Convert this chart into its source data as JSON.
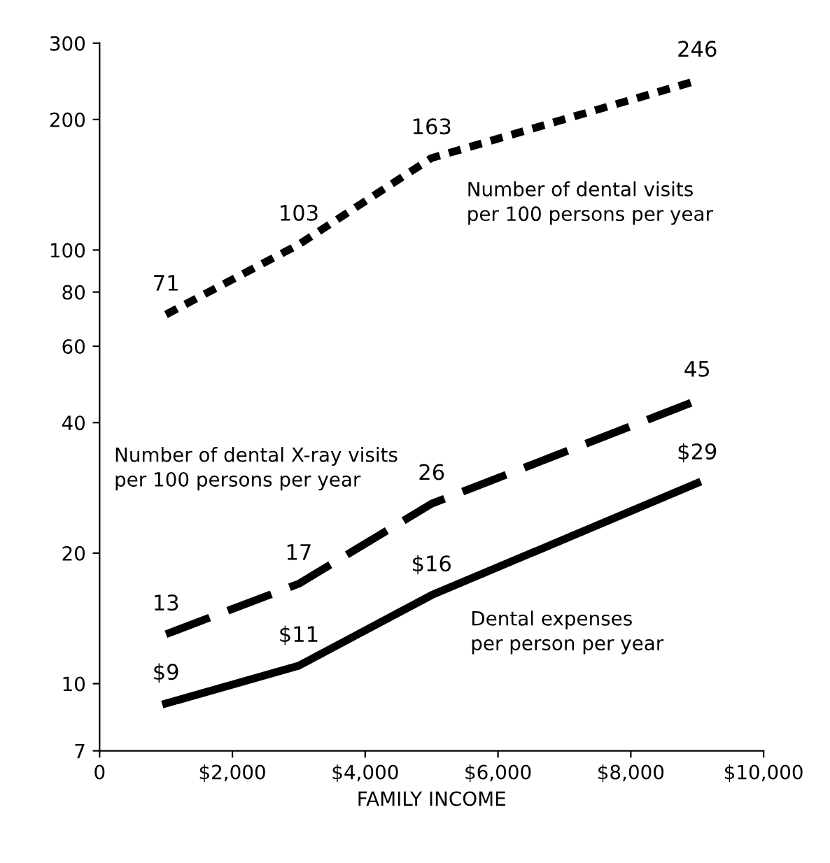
{
  "chart_data": {
    "type": "line",
    "xlabel": "FAMILY INCOME",
    "log": "y",
    "xlim": [
      0,
      10000
    ],
    "ylim": [
      7,
      300
    ],
    "xticks": [
      0,
      {
        "value": 2000,
        "label": "$2,000"
      },
      {
        "value": 4000,
        "label": "$4,000"
      },
      {
        "value": 6000,
        "label": "$6,000"
      },
      {
        "value": 8000,
        "label": "$8,000"
      },
      {
        "value": 10000,
        "label": "$10,000"
      }
    ],
    "yticks": [
      7,
      10,
      20,
      40,
      60,
      80,
      100,
      200,
      300
    ],
    "x": [
      1000,
      3000,
      5000,
      9000
    ],
    "grid": false,
    "legend": false,
    "series": [
      {
        "name": "Number of dental visits\nper 100 persons per year",
        "color": "#000000",
        "line_style": "dotted",
        "values": [
          71,
          103,
          163,
          246
        ],
        "value_labels": [
          "71",
          "103",
          "163",
          "246"
        ]
      },
      {
        "name": "Number of dental X-ray visits\nper 100 persons per year",
        "color": "#000000",
        "line_style": "dashed",
        "values": [
          13,
          17,
          26,
          45
        ],
        "value_labels": [
          "13",
          "17",
          "26",
          "45"
        ]
      },
      {
        "name": "Dental expenses\nper person per year",
        "color": "#000000",
        "line_style": "solid",
        "values": [
          9,
          11,
          16,
          29
        ],
        "value_labels": [
          "$9",
          "$11",
          "$16",
          "$29"
        ]
      }
    ]
  }
}
